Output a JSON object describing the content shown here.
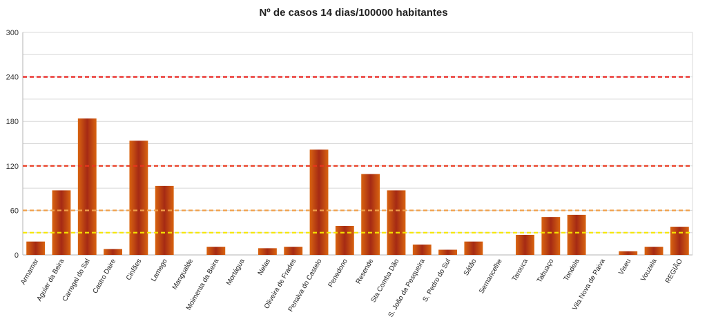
{
  "chart_data": {
    "type": "bar",
    "title": "Nº de casos 14 dias/100000 habitantes",
    "xlabel": "",
    "ylabel": "",
    "ylim": [
      0,
      300
    ],
    "yticks": [
      0,
      60,
      120,
      180,
      240,
      300
    ],
    "grid": true,
    "categories": [
      "Armamar",
      "Aguiar da Beira",
      "Carregal do Sal",
      "Castro Daire",
      "Cinfães",
      "Lamego",
      "Mangualde",
      "Moimenta da Beira",
      "Mortágua",
      "Nelas",
      "Oliveira de Frades",
      "Penalva do Castelo",
      "Penedono",
      "Resende",
      "Sta Comba Dão",
      "S. João da Pesqueira",
      "S. Pedro do Sul",
      "Sátão",
      "Sernancelhe",
      "Tarouca",
      "Tabuaço",
      "Tondela",
      "Vila Nova de Paiva",
      "Viseu",
      "Vouzela",
      "REGIÃO"
    ],
    "values": [
      18,
      87,
      184,
      8,
      154,
      93,
      0,
      11,
      0,
      9,
      11,
      142,
      39,
      109,
      87,
      14,
      7,
      18,
      0,
      27,
      51,
      54,
      0,
      5,
      11,
      38
    ],
    "reference_lines": [
      {
        "value": 240,
        "color": "#e8201c",
        "style": "dashed"
      },
      {
        "value": 120,
        "color": "#e8361c",
        "style": "dashed"
      },
      {
        "value": 60,
        "color": "#f0a04a",
        "style": "dashed"
      },
      {
        "value": 30,
        "color": "#f5e600",
        "style": "dashed"
      }
    ],
    "colors": {
      "bar_edge": "#d96410",
      "bar_center": "#a52a14"
    }
  }
}
